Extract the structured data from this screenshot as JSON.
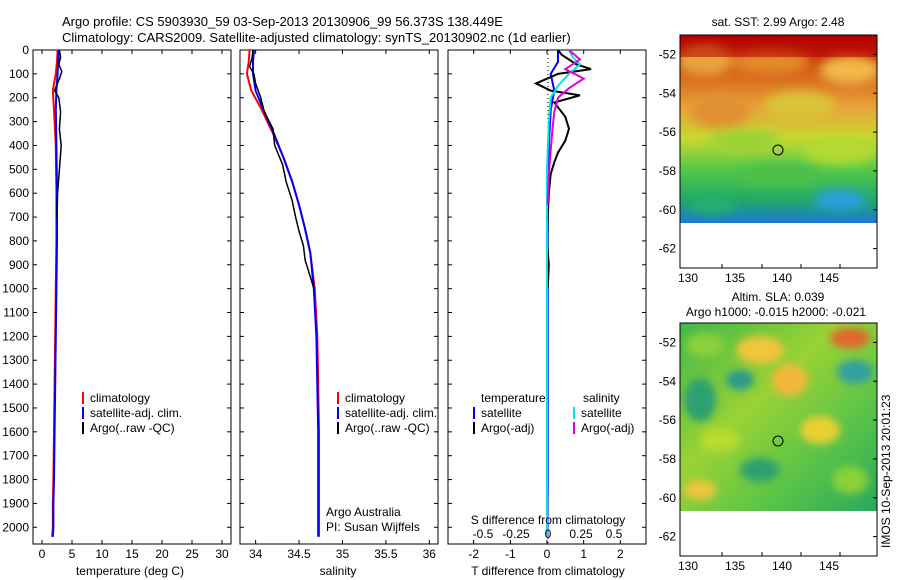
{
  "header": {
    "line1": "Argo profile: CS 5903930_59 03-Sep-2013 20130906_99 56.373S 138.449E",
    "line2": "Climatology: CARS2009. Satellite-adjusted climatology: synTS_20130902.nc (1d earlier)"
  },
  "colors": {
    "climatology": "#ff0000",
    "satellite": "#0000ff",
    "argo": "#000000",
    "salinity_satellite": "#00e5e5",
    "salinity_argo": "#e000e0"
  },
  "chart_data": [
    {
      "type": "line",
      "name": "temperature",
      "xlabel": "temperature (deg C)",
      "xticks": [
        0,
        5,
        10,
        15,
        20,
        25,
        30
      ],
      "xlim": [
        -1.5,
        31.5
      ],
      "ylim": [
        2070,
        0
      ],
      "yticks": [
        0,
        100,
        200,
        300,
        400,
        500,
        600,
        700,
        800,
        900,
        1000,
        1100,
        1200,
        1300,
        1400,
        1500,
        1600,
        1700,
        1800,
        1900,
        2000
      ],
      "legend": [
        "climatology",
        "satellite-adj. clim.",
        "Argo(..raw -QC)"
      ],
      "series": [
        {
          "key": "climatology",
          "color": "#ff0000",
          "x": [
            2.6,
            2.5,
            2.3,
            1.8,
            2.0,
            2.3,
            2.4,
            2.4,
            2.3,
            2.2,
            2.1,
            2.0,
            1.9,
            1.8,
            1.8,
            1.7
          ],
          "y": [
            0,
            50,
            100,
            170,
            250,
            400,
            600,
            800,
            1000,
            1200,
            1400,
            1600,
            1800,
            1900,
            2000,
            2040
          ]
        },
        {
          "key": "satellite",
          "color": "#0000ff",
          "x": [
            2.8,
            2.7,
            2.6,
            2.4,
            2.3,
            2.4,
            2.5,
            2.5,
            2.4,
            2.3,
            2.2,
            2.1,
            2.0,
            1.9,
            1.9,
            1.8
          ],
          "y": [
            0,
            50,
            100,
            170,
            250,
            400,
            600,
            800,
            1000,
            1200,
            1400,
            1600,
            1800,
            1900,
            2000,
            2040
          ]
        },
        {
          "key": "argo",
          "color": "#000000",
          "x": [
            2.9,
            3.1,
            2.8,
            3.3,
            2.9,
            2.1,
            2.8,
            3.1,
            2.9,
            3.2,
            2.9,
            2.6,
            2.5
          ],
          "y": [
            0,
            30,
            60,
            90,
            120,
            170,
            200,
            260,
            330,
            400,
            500,
            600,
            700
          ]
        }
      ]
    },
    {
      "type": "line",
      "name": "salinity",
      "xlabel": "salinity",
      "xticks": [
        34,
        34.5,
        35,
        35.5,
        36
      ],
      "xlim": [
        33.82,
        36.1
      ],
      "ylim": [
        2070,
        0
      ],
      "legend": [
        "climatology",
        "satellite-adj. clim.",
        "Argo(..raw -QC)"
      ],
      "annotation": [
        "Argo Australia",
        "PI: Susan Wijffels"
      ],
      "series": [
        {
          "key": "climatology",
          "color": "#ff0000",
          "x": [
            33.93,
            33.92,
            33.9,
            33.95,
            34.07,
            34.2,
            34.32,
            34.42,
            34.5,
            34.57,
            34.63,
            34.68,
            34.71,
            34.72,
            34.73,
            34.73,
            34.73,
            34.73
          ],
          "y": [
            0,
            50,
            100,
            170,
            250,
            350,
            450,
            550,
            650,
            750,
            850,
            1000,
            1200,
            1400,
            1600,
            1800,
            2000,
            2040
          ]
        },
        {
          "key": "satellite",
          "color": "#0000ff",
          "x": [
            33.98,
            33.97,
            33.97,
            34.0,
            34.09,
            34.21,
            34.32,
            34.42,
            34.5,
            34.57,
            34.63,
            34.67,
            34.7,
            34.71,
            34.72,
            34.72,
            34.72,
            34.72
          ],
          "y": [
            0,
            50,
            100,
            170,
            250,
            350,
            450,
            550,
            650,
            750,
            850,
            1000,
            1200,
            1400,
            1600,
            1800,
            2000,
            2040
          ]
        },
        {
          "key": "argo",
          "color": "#000000",
          "x": [
            33.97,
            33.96,
            33.93,
            33.98,
            34.0,
            34.06,
            34.1,
            34.2,
            34.22,
            34.31,
            34.35,
            34.42,
            34.46,
            34.5,
            34.55,
            34.57,
            34.63,
            34.67
          ],
          "y": [
            0,
            30,
            70,
            100,
            140,
            200,
            260,
            330,
            400,
            480,
            550,
            630,
            700,
            760,
            820,
            880,
            950,
            1000
          ]
        }
      ]
    },
    {
      "type": "line",
      "name": "difference",
      "xlabel": "T difference from climatology",
      "xticks": [
        -2,
        -1,
        0,
        1,
        2
      ],
      "xlim": [
        -2.7,
        2.7
      ],
      "ylim": [
        2070,
        0
      ],
      "sxlabel": "S difference from climatology",
      "sxticks": [
        "-0.5",
        "-0.25",
        "0",
        "0.25",
        "0.5"
      ],
      "legend": {
        "temperature_title": "temperature",
        "salinity_title": "salinity",
        "satellite": "satellite",
        "argo": "Argo(-adj)"
      },
      "series": [
        {
          "key": "t_satellite",
          "color": "#0000ff",
          "x": [
            0.3,
            0.3,
            0.1,
            0.2,
            0.1,
            0.05,
            0.03,
            0.02,
            0.02,
            0.02,
            0.02,
            0.01
          ],
          "y": [
            0,
            50,
            100,
            170,
            250,
            400,
            600,
            800,
            1000,
            1400,
            1800,
            2040
          ]
        },
        {
          "key": "t_argo",
          "color": "#000000",
          "x": [
            0.3,
            0.4,
            0.6,
            0.8,
            1.2,
            0.3,
            -0.3,
            0.1,
            0.9,
            0.2,
            0.5,
            0.6,
            0.5,
            0.3,
            0.2,
            0.1,
            0.05,
            0.02,
            0.0,
            0.05,
            0.02
          ],
          "y": [
            0,
            20,
            40,
            60,
            80,
            100,
            140,
            170,
            190,
            220,
            280,
            330,
            380,
            430,
            470,
            520,
            600,
            700,
            800,
            900,
            1000
          ]
        },
        {
          "key": "s_satellite",
          "color": "#00e5e5",
          "x": [
            0.6,
            0.7,
            0.9,
            0.6,
            0.3,
            0.1,
            0.05,
            0.0,
            0.0,
            0.0,
            0.0,
            0.0,
            0.0
          ],
          "y": [
            0,
            30,
            60,
            100,
            150,
            200,
            300,
            500,
            800,
            1000,
            1400,
            1800,
            2040
          ]
        },
        {
          "key": "s_argo",
          "color": "#e000e0",
          "x": [
            0.6,
            0.9,
            0.5,
            1.0,
            0.6,
            0.3,
            0.2,
            0.15,
            0.1,
            0.05,
            0.02
          ],
          "y": [
            0,
            40,
            80,
            120,
            160,
            200,
            260,
            330,
            420,
            520,
            650
          ]
        }
      ]
    }
  ],
  "maps": [
    {
      "name": "sst",
      "title": "sat. SST: 2.99 Argo: 2.48",
      "xticks": [
        "130",
        "135",
        "140",
        "145"
      ],
      "yticks": [
        "-52",
        "-54",
        "-56",
        "-58",
        "-60",
        "-62"
      ]
    },
    {
      "name": "sla",
      "title1": "Altim. SLA: 0.039",
      "title2": "Argo h1000: -0.015 h2000: -0.021",
      "xticks": [
        "130",
        "135",
        "140",
        "145"
      ],
      "yticks": [
        "-52",
        "-54",
        "-56",
        "-58",
        "-60",
        "-62"
      ]
    }
  ],
  "footer": "IMOS 10-Sep-2013 20:01:23"
}
